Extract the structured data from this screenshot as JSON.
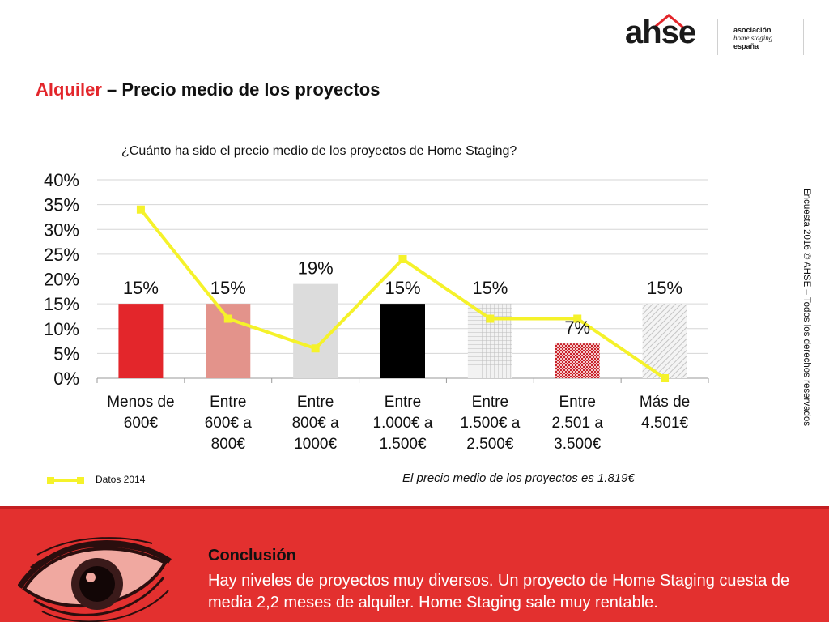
{
  "logo": {
    "mark": "ahse",
    "line1": "asociación",
    "line2": "home staging",
    "line3": "españa"
  },
  "page_title": {
    "accent": "Alquiler",
    "rest": " – Precio medio de los proyectos"
  },
  "side_note": "Encuesta 2016 © AHSE – Todos los derechos reservados",
  "legend": {
    "label": "Datos 2014"
  },
  "avg_note": "El precio medio de los proyectos es 1.819€",
  "conclusion": {
    "title": "Conclusión",
    "text": "Hay niveles de proyectos muy diversos. Un proyecto de Home Staging cuesta de media 2,2 meses de alquiler. Home Staging sale muy rentable."
  },
  "colors": {
    "accent": "#e3262b",
    "line_2014": "#f5f22a",
    "panel": "#e3302f"
  },
  "chart_data": {
    "type": "bar",
    "title": "¿Cuánto ha sido el precio medio de los proyectos de Home Staging?",
    "categories": [
      [
        "Menos de",
        "600€"
      ],
      [
        "Entre",
        "600€ a",
        "800€"
      ],
      [
        "Entre",
        "800€ a",
        "1000€"
      ],
      [
        "Entre",
        "1.000€ a",
        "1.500€"
      ],
      [
        "Entre",
        "1.500€ a",
        "2.500€"
      ],
      [
        "Entre",
        "2.501 a",
        "3.500€"
      ],
      [
        "Más de",
        "4.501€"
      ]
    ],
    "yticks": [
      "0%",
      "5%",
      "10%",
      "15%",
      "20%",
      "25%",
      "30%",
      "35%",
      "40%"
    ],
    "ylim": [
      0,
      40
    ],
    "grid": true,
    "series": [
      {
        "type": "bar",
        "values": [
          15,
          15,
          19,
          15,
          15,
          7,
          15
        ],
        "data_labels": [
          "15%",
          "15%",
          "19%",
          "15%",
          "15%",
          "7%",
          "15%"
        ],
        "colors": [
          "#e3262b",
          "#e3938b",
          "#dcdcdc",
          "#000000",
          "#d8d8d8",
          "#c8232a",
          "#e0e0e0"
        ],
        "patterns": [
          "solid",
          "solid",
          "solid",
          "solid",
          "grid",
          "check",
          "diagonal"
        ]
      },
      {
        "type": "line",
        "name": "Datos 2014",
        "values": [
          34,
          12,
          6,
          24,
          12,
          12,
          0
        ],
        "color": "#f5f22a"
      }
    ],
    "legend_position": "bottom-left"
  }
}
